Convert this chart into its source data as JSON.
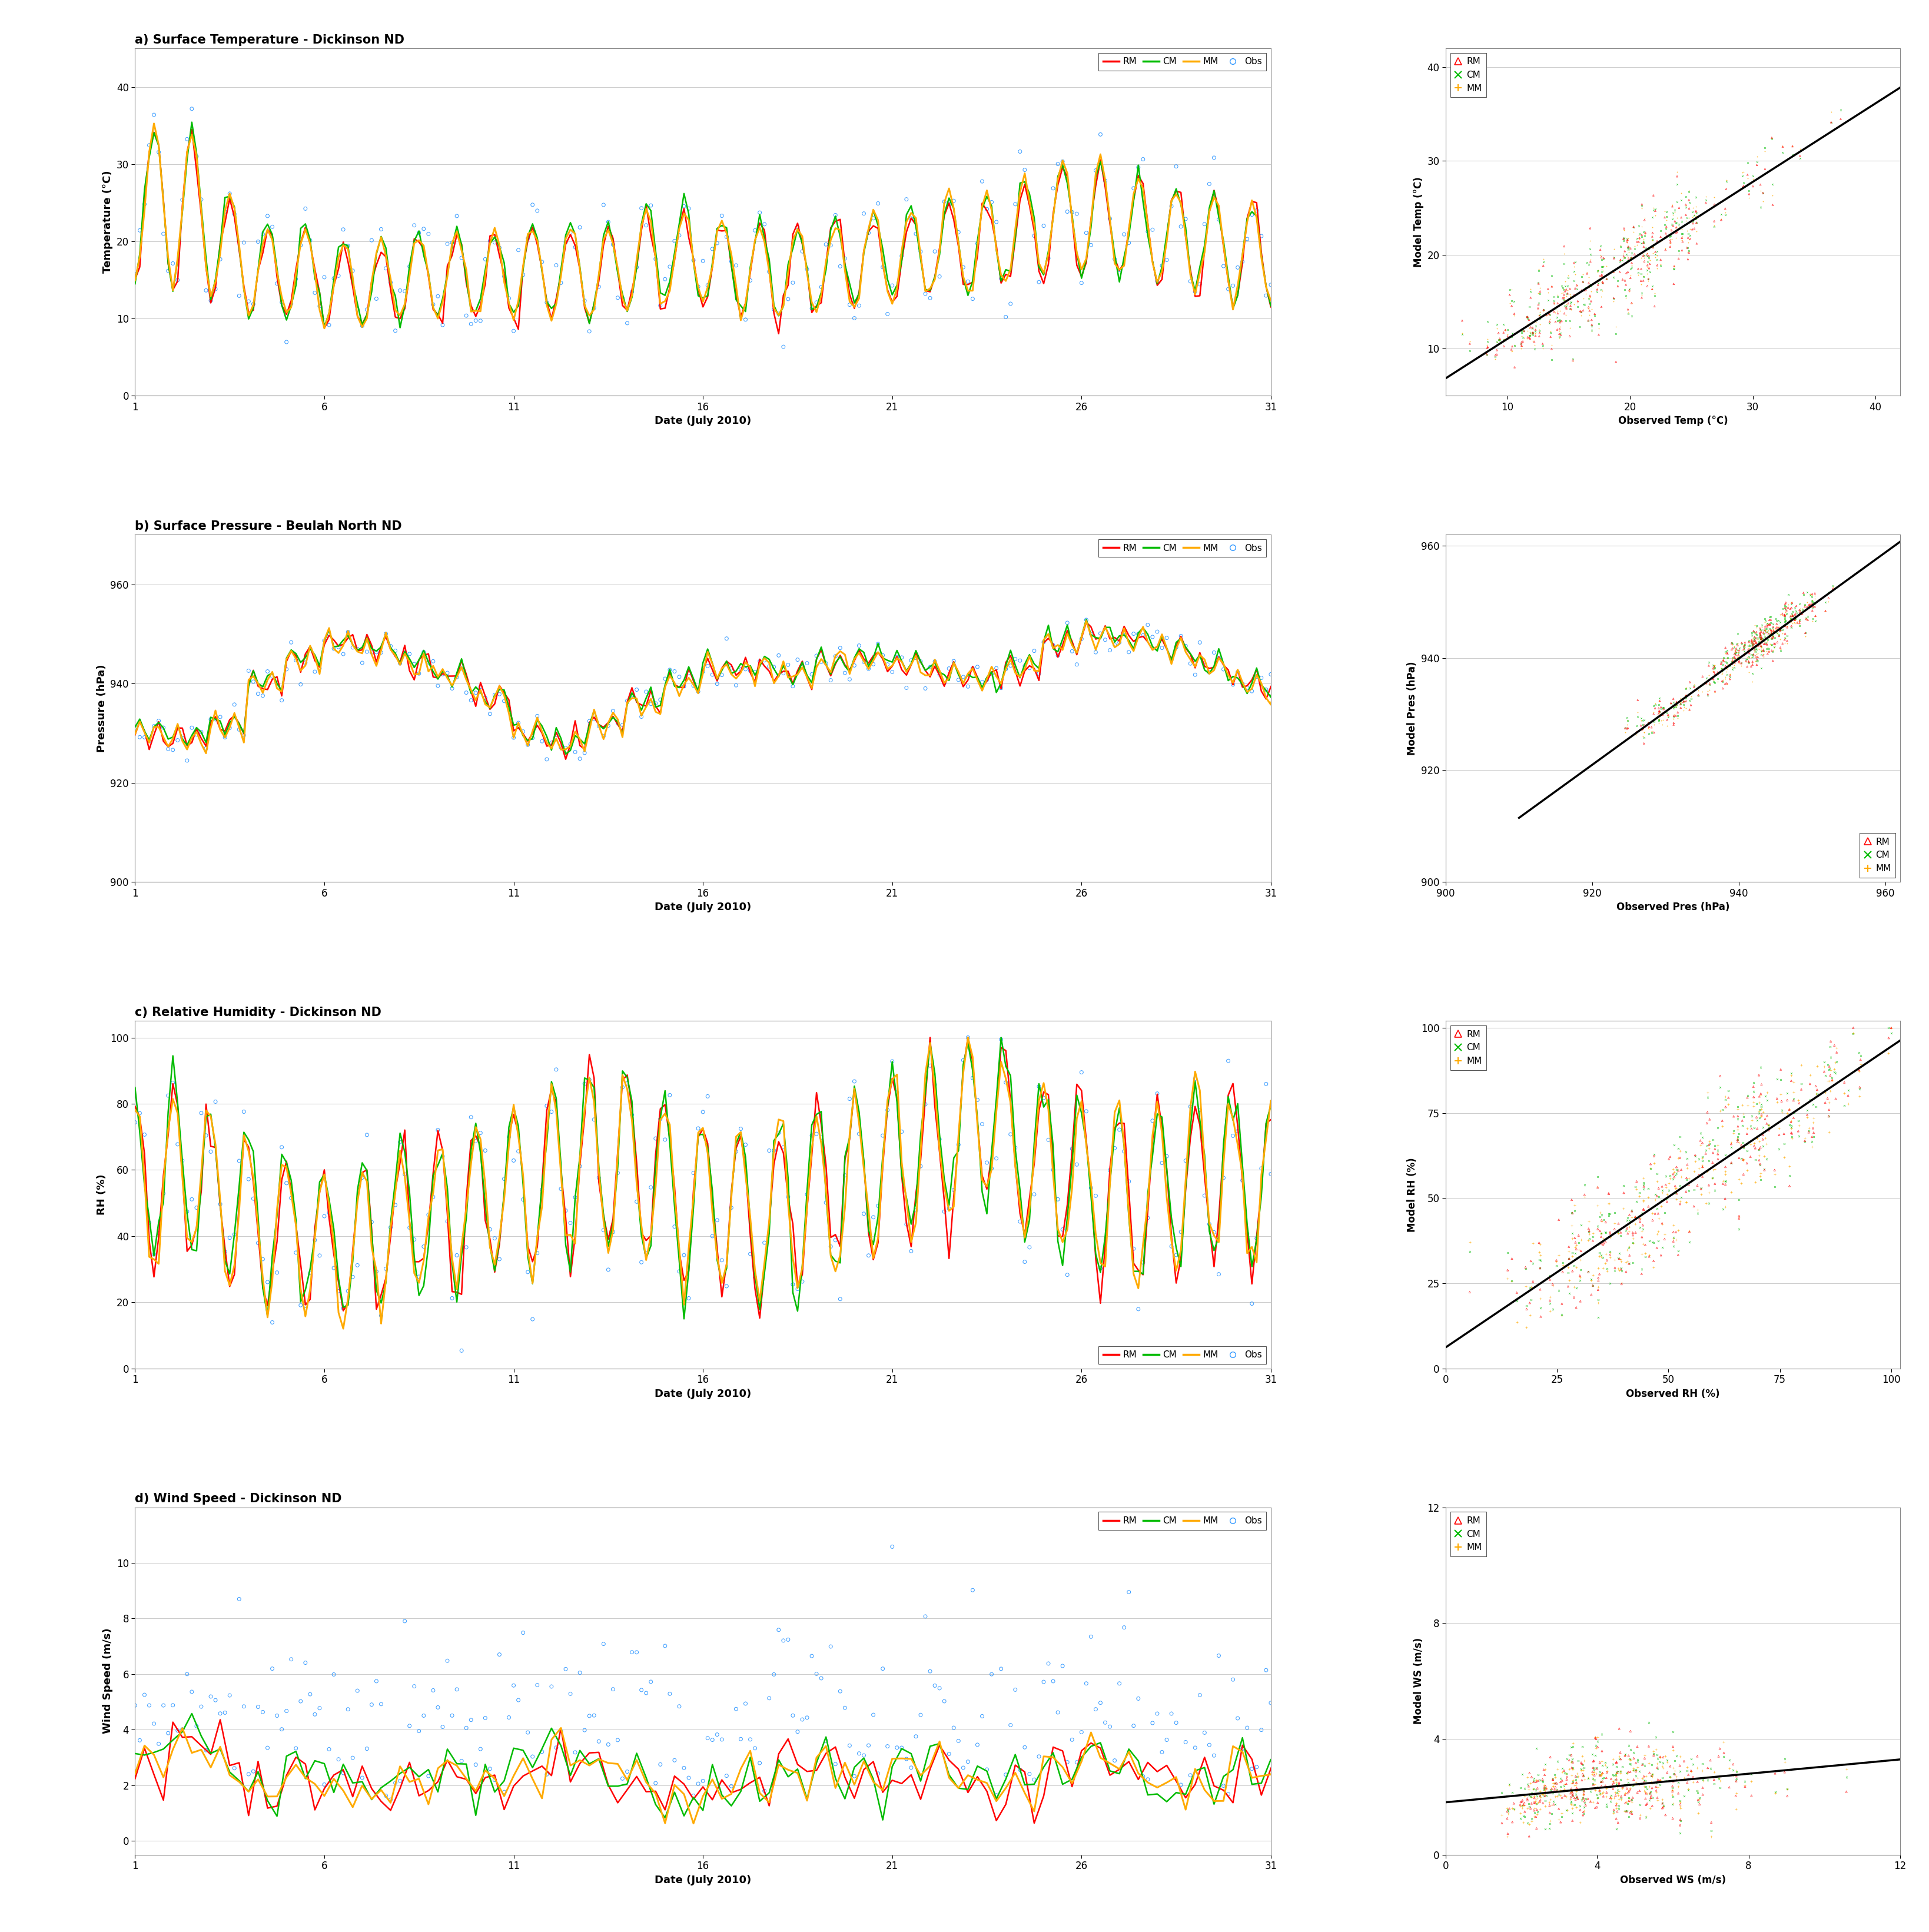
{
  "panels": [
    {
      "title": "a) Surface Temperature - Dickinson ND",
      "ylabel": "Temperature (°C)",
      "xlabel": "Date (July 2010)",
      "scatter_xlabel": "Observed Temp (°C)",
      "scatter_ylabel": "Model Temp (°C)",
      "ylim": [
        0,
        45
      ],
      "xlim": [
        1,
        31
      ],
      "scatter_xlim": [
        5,
        42
      ],
      "scatter_ylim": [
        5,
        42
      ],
      "yticks": [
        0,
        10,
        20,
        30,
        40
      ],
      "xticks": [
        1,
        6,
        11,
        16,
        21,
        26,
        31
      ],
      "scatter_xticks": [
        10,
        20,
        30,
        40
      ],
      "scatter_yticks": [
        10,
        20,
        30,
        40
      ],
      "legend_loc": "upper right",
      "scatter_legend_loc": "upper left",
      "ts_legend_ncol": 4,
      "type": "temp"
    },
    {
      "title": "b) Surface Pressure - Beulah North ND",
      "ylabel": "Pressure (hPa)",
      "xlabel": "Date (July 2010)",
      "scatter_xlabel": "Observed Pres (hPa)",
      "scatter_ylabel": "Model Pres (hPa)",
      "ylim": [
        900,
        970
      ],
      "xlim": [
        1,
        31
      ],
      "scatter_xlim": [
        910,
        962
      ],
      "scatter_ylim": [
        910,
        962
      ],
      "yticks": [
        900,
        920,
        940,
        960
      ],
      "xticks": [
        1,
        6,
        11,
        16,
        21,
        26,
        31
      ],
      "scatter_xticks": [
        900,
        920,
        940,
        960
      ],
      "scatter_yticks": [
        900,
        920,
        940,
        960
      ],
      "legend_loc": "upper right",
      "scatter_legend_loc": "lower right",
      "ts_legend_ncol": 4,
      "type": "pres"
    },
    {
      "title": "c) Relative Humidity - Dickinson ND",
      "ylabel": "RH (%)",
      "xlabel": "Date (July 2010)",
      "scatter_xlabel": "Observed RH (%)",
      "scatter_ylabel": "Model RH (%)",
      "ylim": [
        0,
        105
      ],
      "xlim": [
        1,
        31
      ],
      "scatter_xlim": [
        0,
        102
      ],
      "scatter_ylim": [
        0,
        102
      ],
      "yticks": [
        0,
        20,
        40,
        60,
        80,
        100
      ],
      "xticks": [
        1,
        6,
        11,
        16,
        21,
        26,
        31
      ],
      "scatter_xticks": [
        0,
        25,
        50,
        75,
        100
      ],
      "scatter_yticks": [
        0,
        25,
        50,
        75,
        100
      ],
      "legend_loc": "lower right",
      "scatter_legend_loc": "upper left",
      "ts_legend_ncol": 4,
      "type": "rh"
    },
    {
      "title": "d) Wind Speed - Dickinson ND",
      "ylabel": "Wind Speed (m/s)",
      "xlabel": "Date (July 2010)",
      "scatter_xlabel": "Observed WS (m/s)",
      "scatter_ylabel": "Model WS (m/s)",
      "ylim": [
        -0.5,
        12
      ],
      "xlim": [
        1,
        31
      ],
      "scatter_xlim": [
        0,
        12
      ],
      "scatter_ylim": [
        0,
        12
      ],
      "yticks": [
        0,
        2,
        4,
        6,
        8,
        10
      ],
      "xticks": [
        1,
        6,
        11,
        16,
        21,
        26,
        31
      ],
      "scatter_xticks": [
        0,
        4,
        8,
        12
      ],
      "scatter_yticks": [
        0,
        4,
        8,
        12
      ],
      "legend_loc": "upper right",
      "scatter_legend_loc": "upper left",
      "ts_legend_ncol": 4,
      "type": "wind"
    }
  ],
  "colors": {
    "RM": "#ff0000",
    "CM": "#00bb00",
    "MM": "#ffaa00",
    "Obs": "#3399ff"
  },
  "line_width": 1.8,
  "obs_circle_size": 18,
  "obs_lw": 0.7
}
